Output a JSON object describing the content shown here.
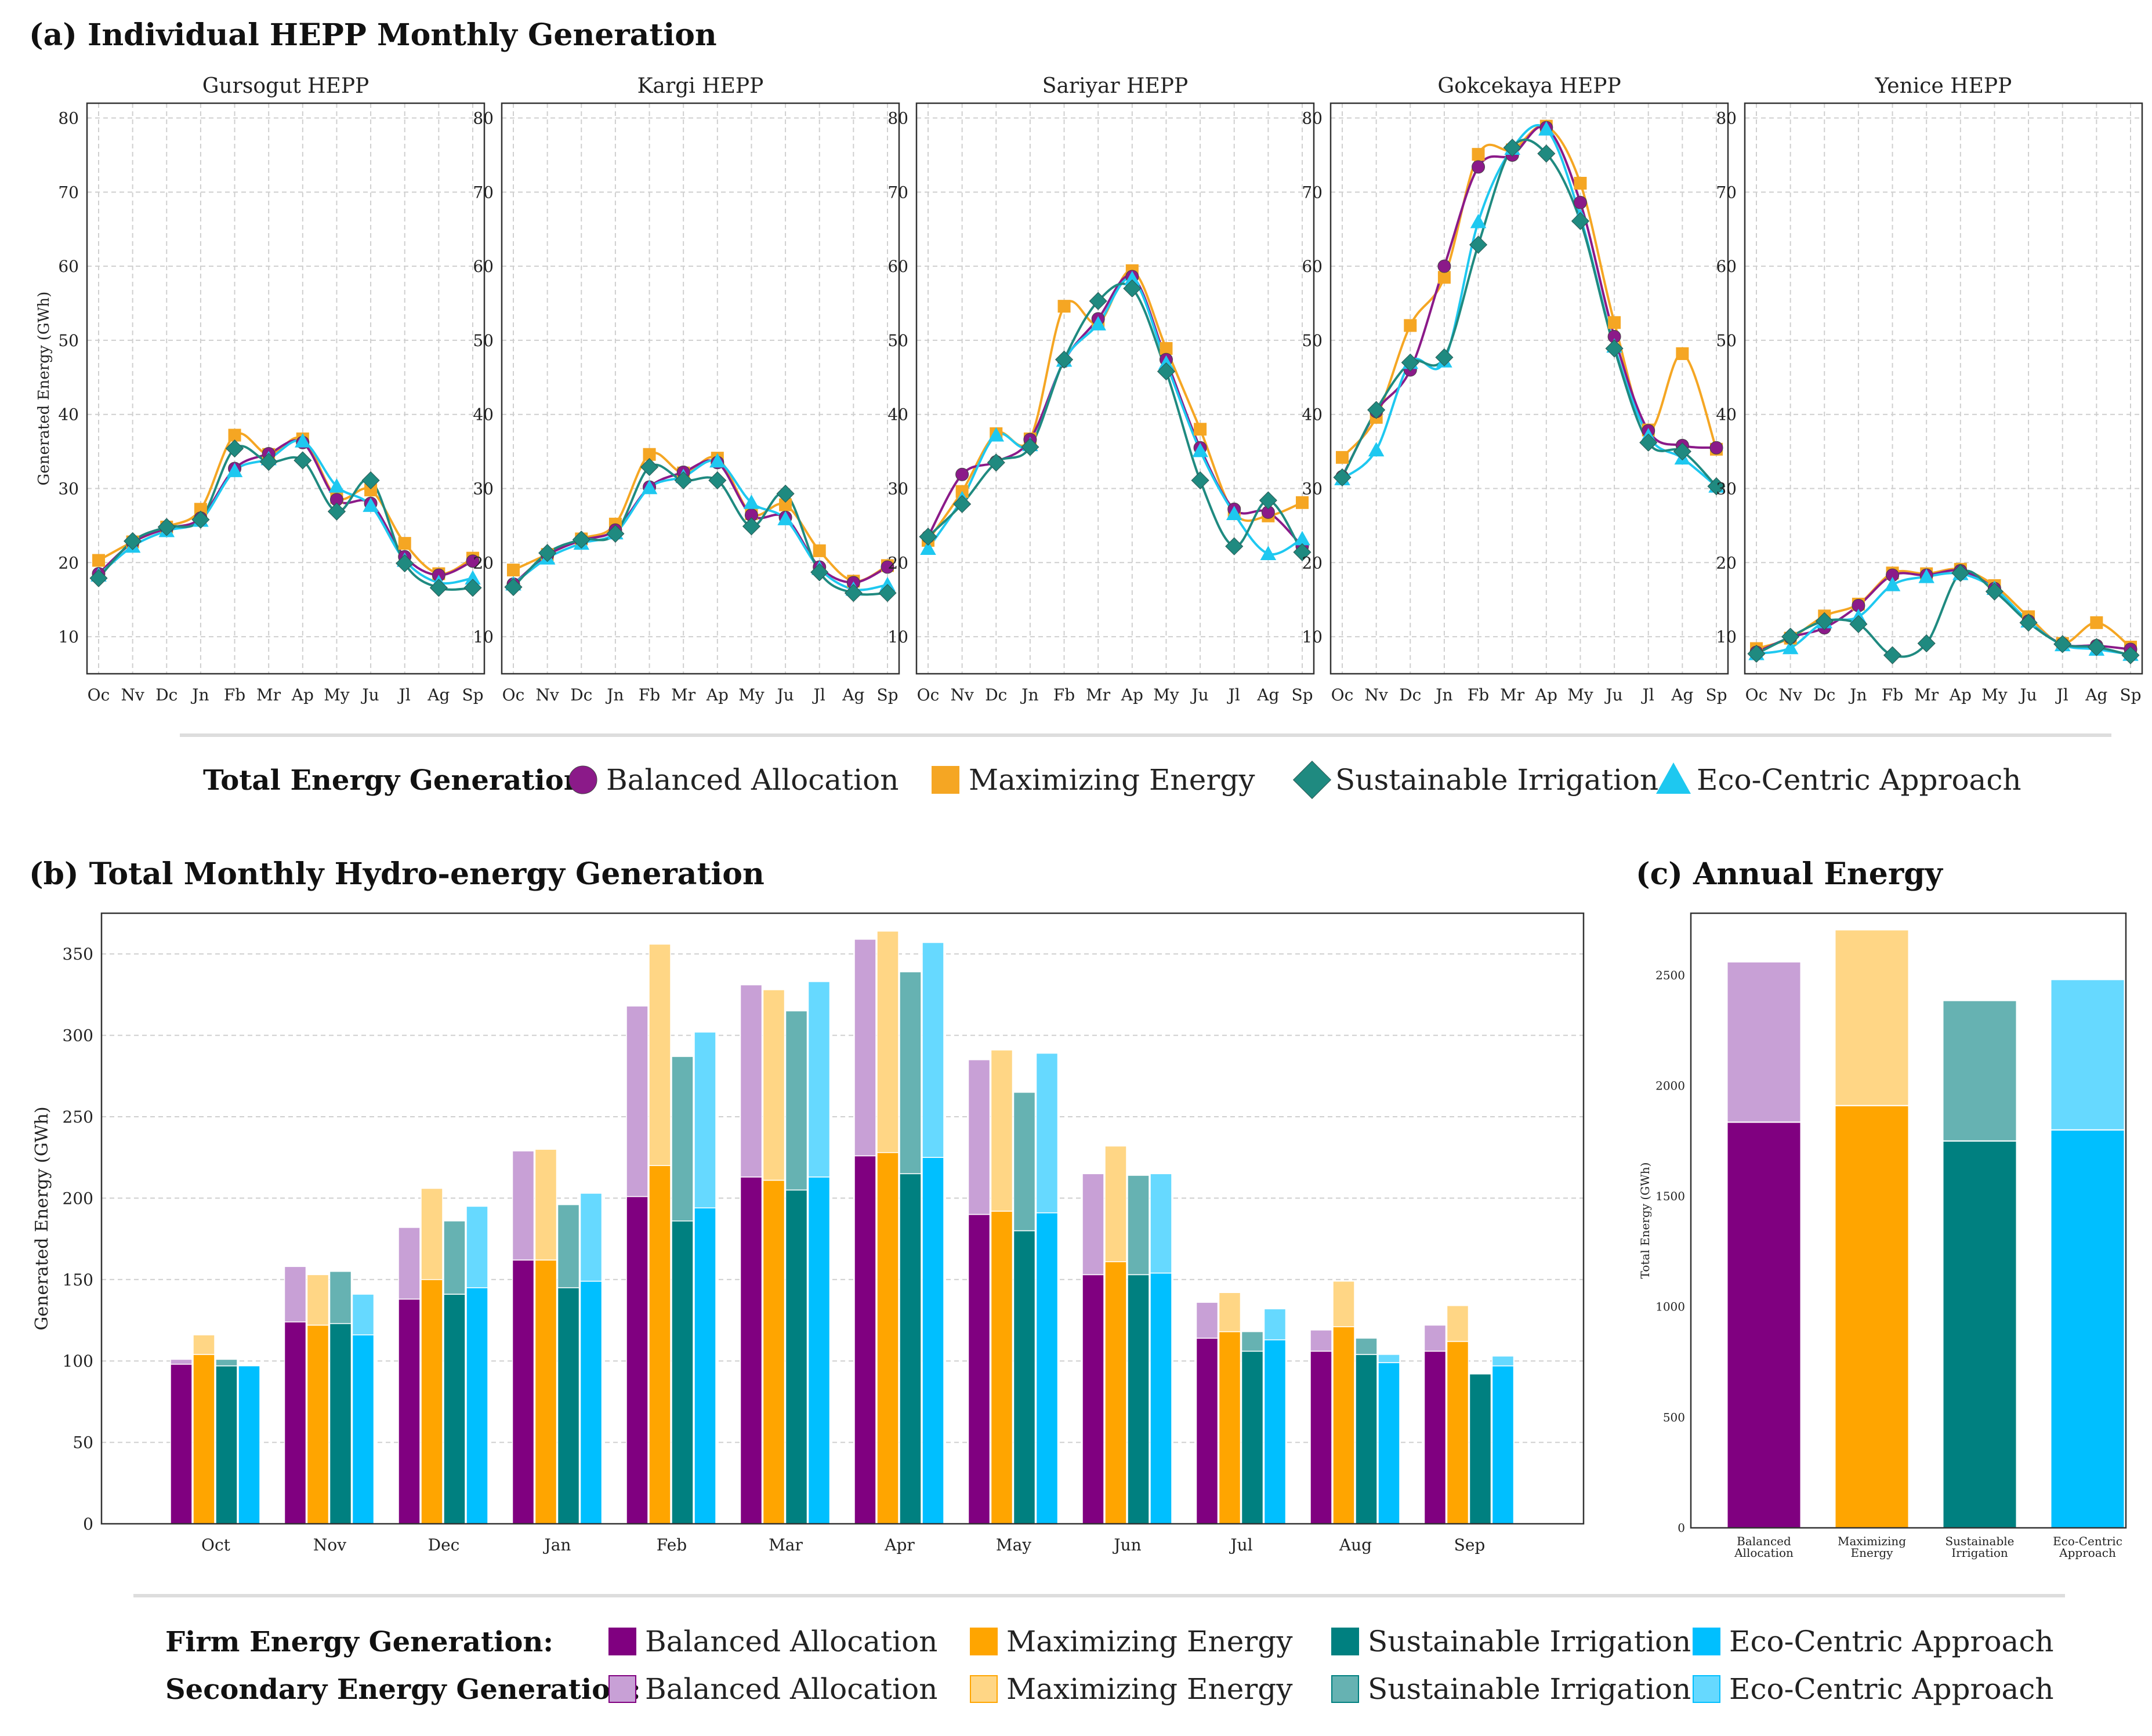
{
  "titles": {
    "a": "(a) Individual HEPP Monthly Generation",
    "b": "(b) Total Monthly Hydro-energy Generation",
    "c": "(c) Annual Energy"
  },
  "colors": {
    "balanced": "#8b1a89",
    "maximizing": "#f5a623",
    "sustainable": "#1f8a80",
    "ecocentric": "#1ec8f0",
    "firm_balanced": "#800080",
    "firm_maximizing": "#ffa500",
    "firm_sustainable": "#008080",
    "firm_ecocentric": "#00bfff",
    "sec_balanced": "#c8a0d6",
    "sec_maximizing": "#ffd685",
    "sec_sustainable": "#66b2b2",
    "sec_ecocentric": "#66d9ff"
  },
  "legend_a": {
    "heading": "Total Energy Generation:",
    "items": [
      {
        "label": "Balanced Allocation",
        "marker": "circle",
        "color": "#8b1a89"
      },
      {
        "label": "Maximizing Energy",
        "marker": "square",
        "color": "#f5a623"
      },
      {
        "label": "Sustainable Irrigation",
        "marker": "diamond",
        "color": "#1f8a80"
      },
      {
        "label": "Eco-Centric Approach",
        "marker": "triangle",
        "color": "#1ec8f0"
      }
    ]
  },
  "legend_b": {
    "firm_heading": "Firm Energy Generation:",
    "secondary_heading": "Secondary Energy Generation:",
    "labels": [
      "Balanced Allocation",
      "Maximizing Energy",
      "Sustainable Irrigation",
      "Eco-Centric Approach"
    ]
  },
  "chart_data": [
    {
      "type": "line",
      "panel": "a",
      "ylabel": "Generated Energy (GWh)",
      "ylim": [
        5,
        82
      ],
      "yticks": [
        10,
        20,
        30,
        40,
        50,
        60,
        70,
        80
      ],
      "categories": [
        "Oc",
        "Nv",
        "Dc",
        "Jn",
        "Fb",
        "Mr",
        "Ap",
        "My",
        "Ju",
        "Jl",
        "Ag",
        "Sp"
      ],
      "grid": true,
      "subplots": [
        {
          "title": "Gursogut HEPP",
          "series": [
            {
              "name": "Balanced Allocation",
              "values": [
                18.5,
                22.7,
                24.6,
                26.0,
                32.7,
                34.7,
                36.2,
                28.5,
                28.0,
                20.8,
                18.3,
                20.2
              ]
            },
            {
              "name": "Maximizing Energy",
              "values": [
                20.3,
                22.8,
                24.8,
                27.2,
                37.2,
                34.6,
                36.7,
                28.8,
                29.8,
                22.6,
                18.5,
                20.6
              ]
            },
            {
              "name": "Sustainable Irrigation",
              "values": [
                17.9,
                22.9,
                24.8,
                25.8,
                35.4,
                33.6,
                33.8,
                26.9,
                31.1,
                19.9,
                16.6,
                16.6
              ]
            },
            {
              "name": "Eco-Centric Approach",
              "values": [
                18.3,
                22.2,
                24.3,
                25.7,
                32.4,
                34.0,
                36.4,
                30.3,
                27.7,
                20.3,
                17.3,
                17.9
              ]
            }
          ]
        },
        {
          "title": "Kargi HEPP",
          "series": [
            {
              "name": "Balanced Allocation",
              "values": [
                17.1,
                21.0,
                23.0,
                24.4,
                30.2,
                32.2,
                33.5,
                26.4,
                26.1,
                19.4,
                17.3,
                19.4
              ]
            },
            {
              "name": "Maximizing Energy",
              "values": [
                19.0,
                21.1,
                23.2,
                25.2,
                34.6,
                32.1,
                34.1,
                26.6,
                27.8,
                21.6,
                17.5,
                19.6
              ]
            },
            {
              "name": "Sustainable Irrigation",
              "values": [
                16.7,
                21.3,
                23.1,
                23.9,
                32.9,
                31.1,
                31.1,
                24.9,
                29.3,
                18.7,
                15.9,
                15.9
              ]
            },
            {
              "name": "Eco-Centric Approach",
              "values": [
                17.1,
                20.6,
                22.6,
                24.0,
                30.1,
                31.6,
                33.7,
                28.1,
                25.9,
                19.2,
                16.4,
                17.0
              ]
            }
          ]
        },
        {
          "title": "Sariyar HEPP",
          "series": [
            {
              "name": "Balanced Allocation",
              "values": [
                23.5,
                31.9,
                33.6,
                36.6,
                47.2,
                52.9,
                58.6,
                47.4,
                35.5,
                27.2,
                26.8,
                22.2
              ]
            },
            {
              "name": "Maximizing Energy",
              "values": [
                23.0,
                29.6,
                37.4,
                36.7,
                54.6,
                52.3,
                59.4,
                48.9,
                38.0,
                26.7,
                26.3,
                28.1
              ]
            },
            {
              "name": "Sustainable Irrigation",
              "values": [
                23.5,
                27.9,
                33.5,
                35.6,
                47.4,
                55.3,
                57.0,
                45.8,
                31.1,
                22.2,
                28.4,
                21.4
              ]
            },
            {
              "name": "Eco-Centric Approach",
              "values": [
                21.9,
                28.6,
                37.2,
                35.9,
                47.3,
                52.2,
                58.3,
                46.9,
                35.1,
                26.6,
                21.2,
                23.2
              ]
            }
          ]
        },
        {
          "title": "Gokcekaya HEPP",
          "series": [
            {
              "name": "Balanced Allocation",
              "values": [
                31.6,
                40.4,
                46.0,
                60.0,
                73.4,
                75.0,
                78.7,
                68.6,
                50.5,
                37.8,
                35.8,
                35.5
              ]
            },
            {
              "name": "Maximizing Energy",
              "values": [
                34.2,
                39.6,
                52.0,
                58.5,
                75.1,
                75.7,
                78.9,
                71.2,
                52.4,
                37.9,
                48.2,
                35.3
              ]
            },
            {
              "name": "Sustainable Irrigation",
              "values": [
                31.5,
                40.6,
                47.0,
                47.7,
                62.9,
                76.0,
                75.2,
                66.1,
                48.9,
                36.2,
                35.0,
                30.3
              ]
            },
            {
              "name": "Eco-Centric Approach",
              "values": [
                31.3,
                35.2,
                47.0,
                47.2,
                66.0,
                75.9,
                78.5,
                66.7,
                49.2,
                37.1,
                34.1,
                30.3
              ]
            }
          ]
        },
        {
          "title": "Yenice HEPP",
          "series": [
            {
              "name": "Balanced Allocation",
              "values": [
                7.9,
                9.9,
                11.2,
                14.2,
                18.3,
                18.3,
                18.9,
                16.5,
                12.1,
                9.0,
                8.8,
                8.3
              ]
            },
            {
              "name": "Maximizing Energy",
              "values": [
                8.4,
                9.8,
                12.8,
                14.4,
                18.6,
                18.5,
                19.1,
                16.9,
                12.7,
                9.1,
                11.9,
                8.6
              ]
            },
            {
              "name": "Sustainable Irrigation",
              "values": [
                7.7,
                10.0,
                12.1,
                11.7,
                7.5,
                9.1,
                18.6,
                16.1,
                11.9,
                9.0,
                8.6,
                7.5
              ]
            },
            {
              "name": "Eco-Centric Approach",
              "values": [
                7.7,
                8.5,
                12.0,
                12.7,
                17.0,
                18.1,
                18.5,
                16.5,
                12.1,
                8.9,
                8.3,
                7.6
              ]
            }
          ]
        }
      ]
    },
    {
      "type": "bar",
      "panel": "b",
      "stacked": true,
      "ylabel": "Generated Energy (GWh)",
      "ylim": [
        0,
        375
      ],
      "yticks": [
        0,
        50,
        100,
        150,
        200,
        250,
        300,
        350
      ],
      "grid": true,
      "categories": [
        "Oct",
        "Nov",
        "Dec",
        "Jan",
        "Feb",
        "Mar",
        "Apr",
        "May",
        "Jun",
        "Jul",
        "Aug",
        "Sep"
      ],
      "series": [
        {
          "name": "Balanced Allocation",
          "firm": [
            98,
            124,
            138,
            162,
            201,
            213,
            226,
            190,
            153,
            114,
            106,
            106
          ],
          "total": [
            101,
            158,
            182,
            229,
            318,
            331,
            359,
            285,
            215,
            136,
            119,
            122
          ]
        },
        {
          "name": "Maximizing Energy",
          "firm": [
            104,
            122,
            150,
            162,
            220,
            211,
            228,
            192,
            161,
            118,
            121,
            112
          ],
          "total": [
            116,
            153,
            206,
            230,
            356,
            328,
            364,
            291,
            232,
            142,
            149,
            134
          ]
        },
        {
          "name": "Sustainable Irrigation",
          "firm": [
            97,
            123,
            141,
            145,
            186,
            205,
            215,
            180,
            153,
            106,
            104,
            92
          ],
          "total": [
            101,
            155,
            186,
            196,
            287,
            315,
            339,
            265,
            214,
            118,
            114,
            92
          ]
        },
        {
          "name": "Eco-Centric Approach",
          "firm": [
            97,
            116,
            145,
            149,
            194,
            213,
            225,
            191,
            154,
            113,
            99,
            97
          ],
          "total": [
            97,
            141,
            195,
            203,
            302,
            333,
            357,
            289,
            215,
            132,
            104,
            103
          ]
        }
      ]
    },
    {
      "type": "bar",
      "panel": "c",
      "stacked": true,
      "ylabel": "Total Energy (GWh)",
      "ylim": [
        0,
        2780
      ],
      "yticks": [
        0,
        500,
        1000,
        1500,
        2000,
        2500
      ],
      "categories": [
        [
          "Balanced",
          "Allocation"
        ],
        [
          "Maximizing",
          "Energy"
        ],
        [
          "Sustainable",
          "Irrigation"
        ],
        [
          "Eco-Centric",
          "Approach"
        ]
      ],
      "series": [
        {
          "name": "Balanced Allocation",
          "firm": 1835,
          "total": 2560
        },
        {
          "name": "Maximizing Energy",
          "firm": 1910,
          "total": 2705
        },
        {
          "name": "Sustainable Irrigation",
          "firm": 1750,
          "total": 2385
        },
        {
          "name": "Eco-Centric Approach",
          "firm": 1800,
          "total": 2480
        }
      ]
    }
  ]
}
